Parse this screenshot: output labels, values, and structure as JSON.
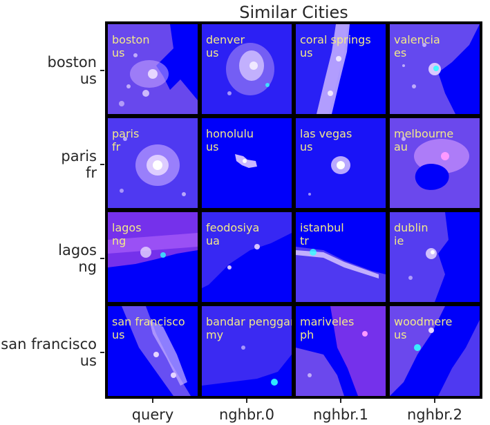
{
  "colors": {
    "tile_base": "#0000fa",
    "label": "#f2e98a",
    "city_light": "#e6d6ff",
    "glow": "#ff66ff",
    "accent": "#33ffff"
  },
  "chart_data": {
    "type": "image-grid",
    "title": "Similar Cities",
    "columns": [
      "query",
      "nghbr.0",
      "nghbr.1",
      "nghbr.2"
    ],
    "rows": [
      {
        "label": {
          "city": "boston",
          "country": "us"
        },
        "tiles": [
          {
            "city": "boston",
            "country": "us"
          },
          {
            "city": "denver",
            "country": "us"
          },
          {
            "city": "coral springs",
            "country": "us"
          },
          {
            "city": "valencia",
            "country": "es"
          }
        ]
      },
      {
        "label": {
          "city": "paris",
          "country": "fr"
        },
        "tiles": [
          {
            "city": "paris",
            "country": "fr"
          },
          {
            "city": "honolulu",
            "country": "us"
          },
          {
            "city": "las vegas",
            "country": "us"
          },
          {
            "city": "melbourne",
            "country": "au"
          }
        ]
      },
      {
        "label": {
          "city": "lagos",
          "country": "ng"
        },
        "tiles": [
          {
            "city": "lagos",
            "country": "ng"
          },
          {
            "city": "feodosiya",
            "country": "ua"
          },
          {
            "city": "istanbul",
            "country": "tr"
          },
          {
            "city": "dublin",
            "country": "ie"
          }
        ]
      },
      {
        "label": {
          "city": "san francisco",
          "country": "us"
        },
        "tiles": [
          {
            "city": "san francisco",
            "country": "us"
          },
          {
            "city": "bandar penggaram",
            "country": "my"
          },
          {
            "city": "mariveles",
            "country": "ph"
          },
          {
            "city": "woodmere",
            "country": "us"
          }
        ]
      }
    ]
  }
}
